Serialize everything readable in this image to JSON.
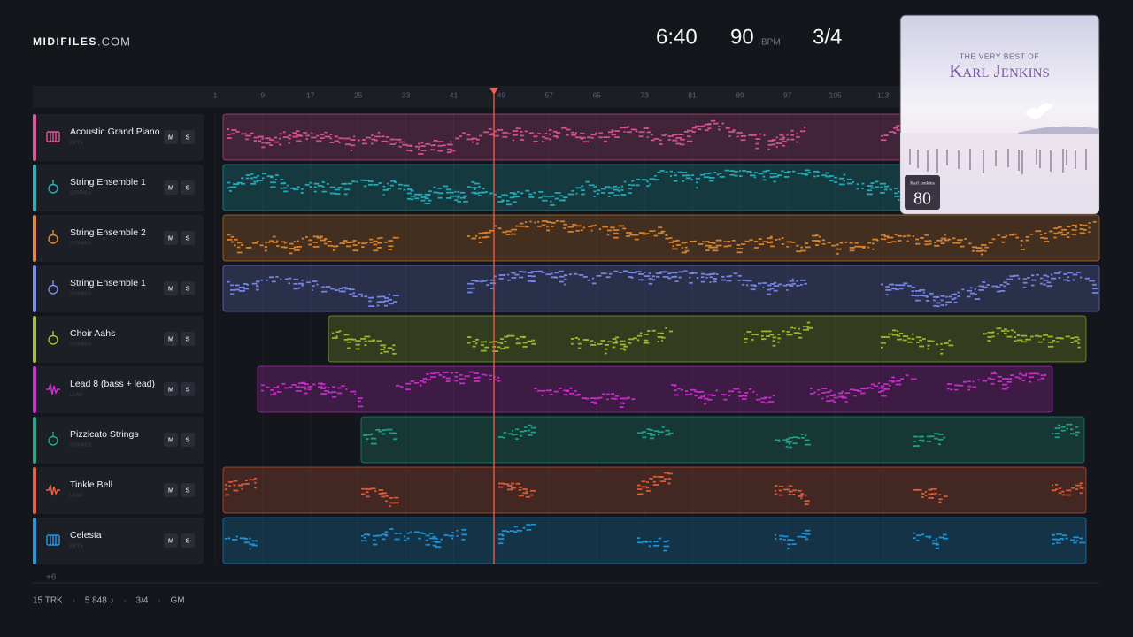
{
  "header": {
    "logo": "MIDIFILES",
    "logo_suffix": ".COM",
    "duration": "6:40",
    "tempo": "90",
    "tempo_unit": "BPM",
    "time_signature": "3/4"
  },
  "album": {
    "kicker": "THE VERY BEST OF",
    "title": "Karl Jenkins",
    "badge_name": "Karl Jenkins",
    "badge_number": "80"
  },
  "ruler": {
    "bars": [
      1,
      9,
      17,
      25,
      33,
      41,
      49,
      57,
      65,
      73,
      81,
      89,
      97,
      105,
      113
    ]
  },
  "tracks": [
    {
      "name": "Acoustic Grand Piano",
      "category": "KEYS",
      "color": "#e2559b",
      "mute": "M",
      "solo": "S"
    },
    {
      "name": "String Ensemble 1",
      "category": "STRINGS",
      "color": "#22b6c2",
      "mute": "M",
      "solo": "S"
    },
    {
      "name": "String Ensemble 2",
      "category": "STRINGS",
      "color": "#e9882c",
      "mute": "M",
      "solo": "S"
    },
    {
      "name": "String Ensemble 1",
      "category": "STRINGS",
      "color": "#7d8df2",
      "mute": "M",
      "solo": "S"
    },
    {
      "name": "Choir Aahs",
      "category": "STRINGS",
      "color": "#a8c22c",
      "mute": "M",
      "solo": "S"
    },
    {
      "name": "Lead 8 (bass + lead)",
      "category": "LEAD",
      "color": "#d22fd4",
      "mute": "M",
      "solo": "S"
    },
    {
      "name": "Pizzicato Strings",
      "category": "STRINGS",
      "color": "#1eab8c",
      "mute": "M",
      "solo": "S"
    },
    {
      "name": "Tinkle Bell",
      "category": "LEAD",
      "color": "#ea623c",
      "mute": "M",
      "solo": "S"
    },
    {
      "name": "Celesta",
      "category": "KEYS",
      "color": "#1d9be2",
      "mute": "M",
      "solo": "S"
    }
  ],
  "more_tracks": "+6",
  "footer": {
    "items": [
      "15 TRK",
      "5 848 ♪",
      "3/4",
      "GM"
    ],
    "separator": "·"
  }
}
